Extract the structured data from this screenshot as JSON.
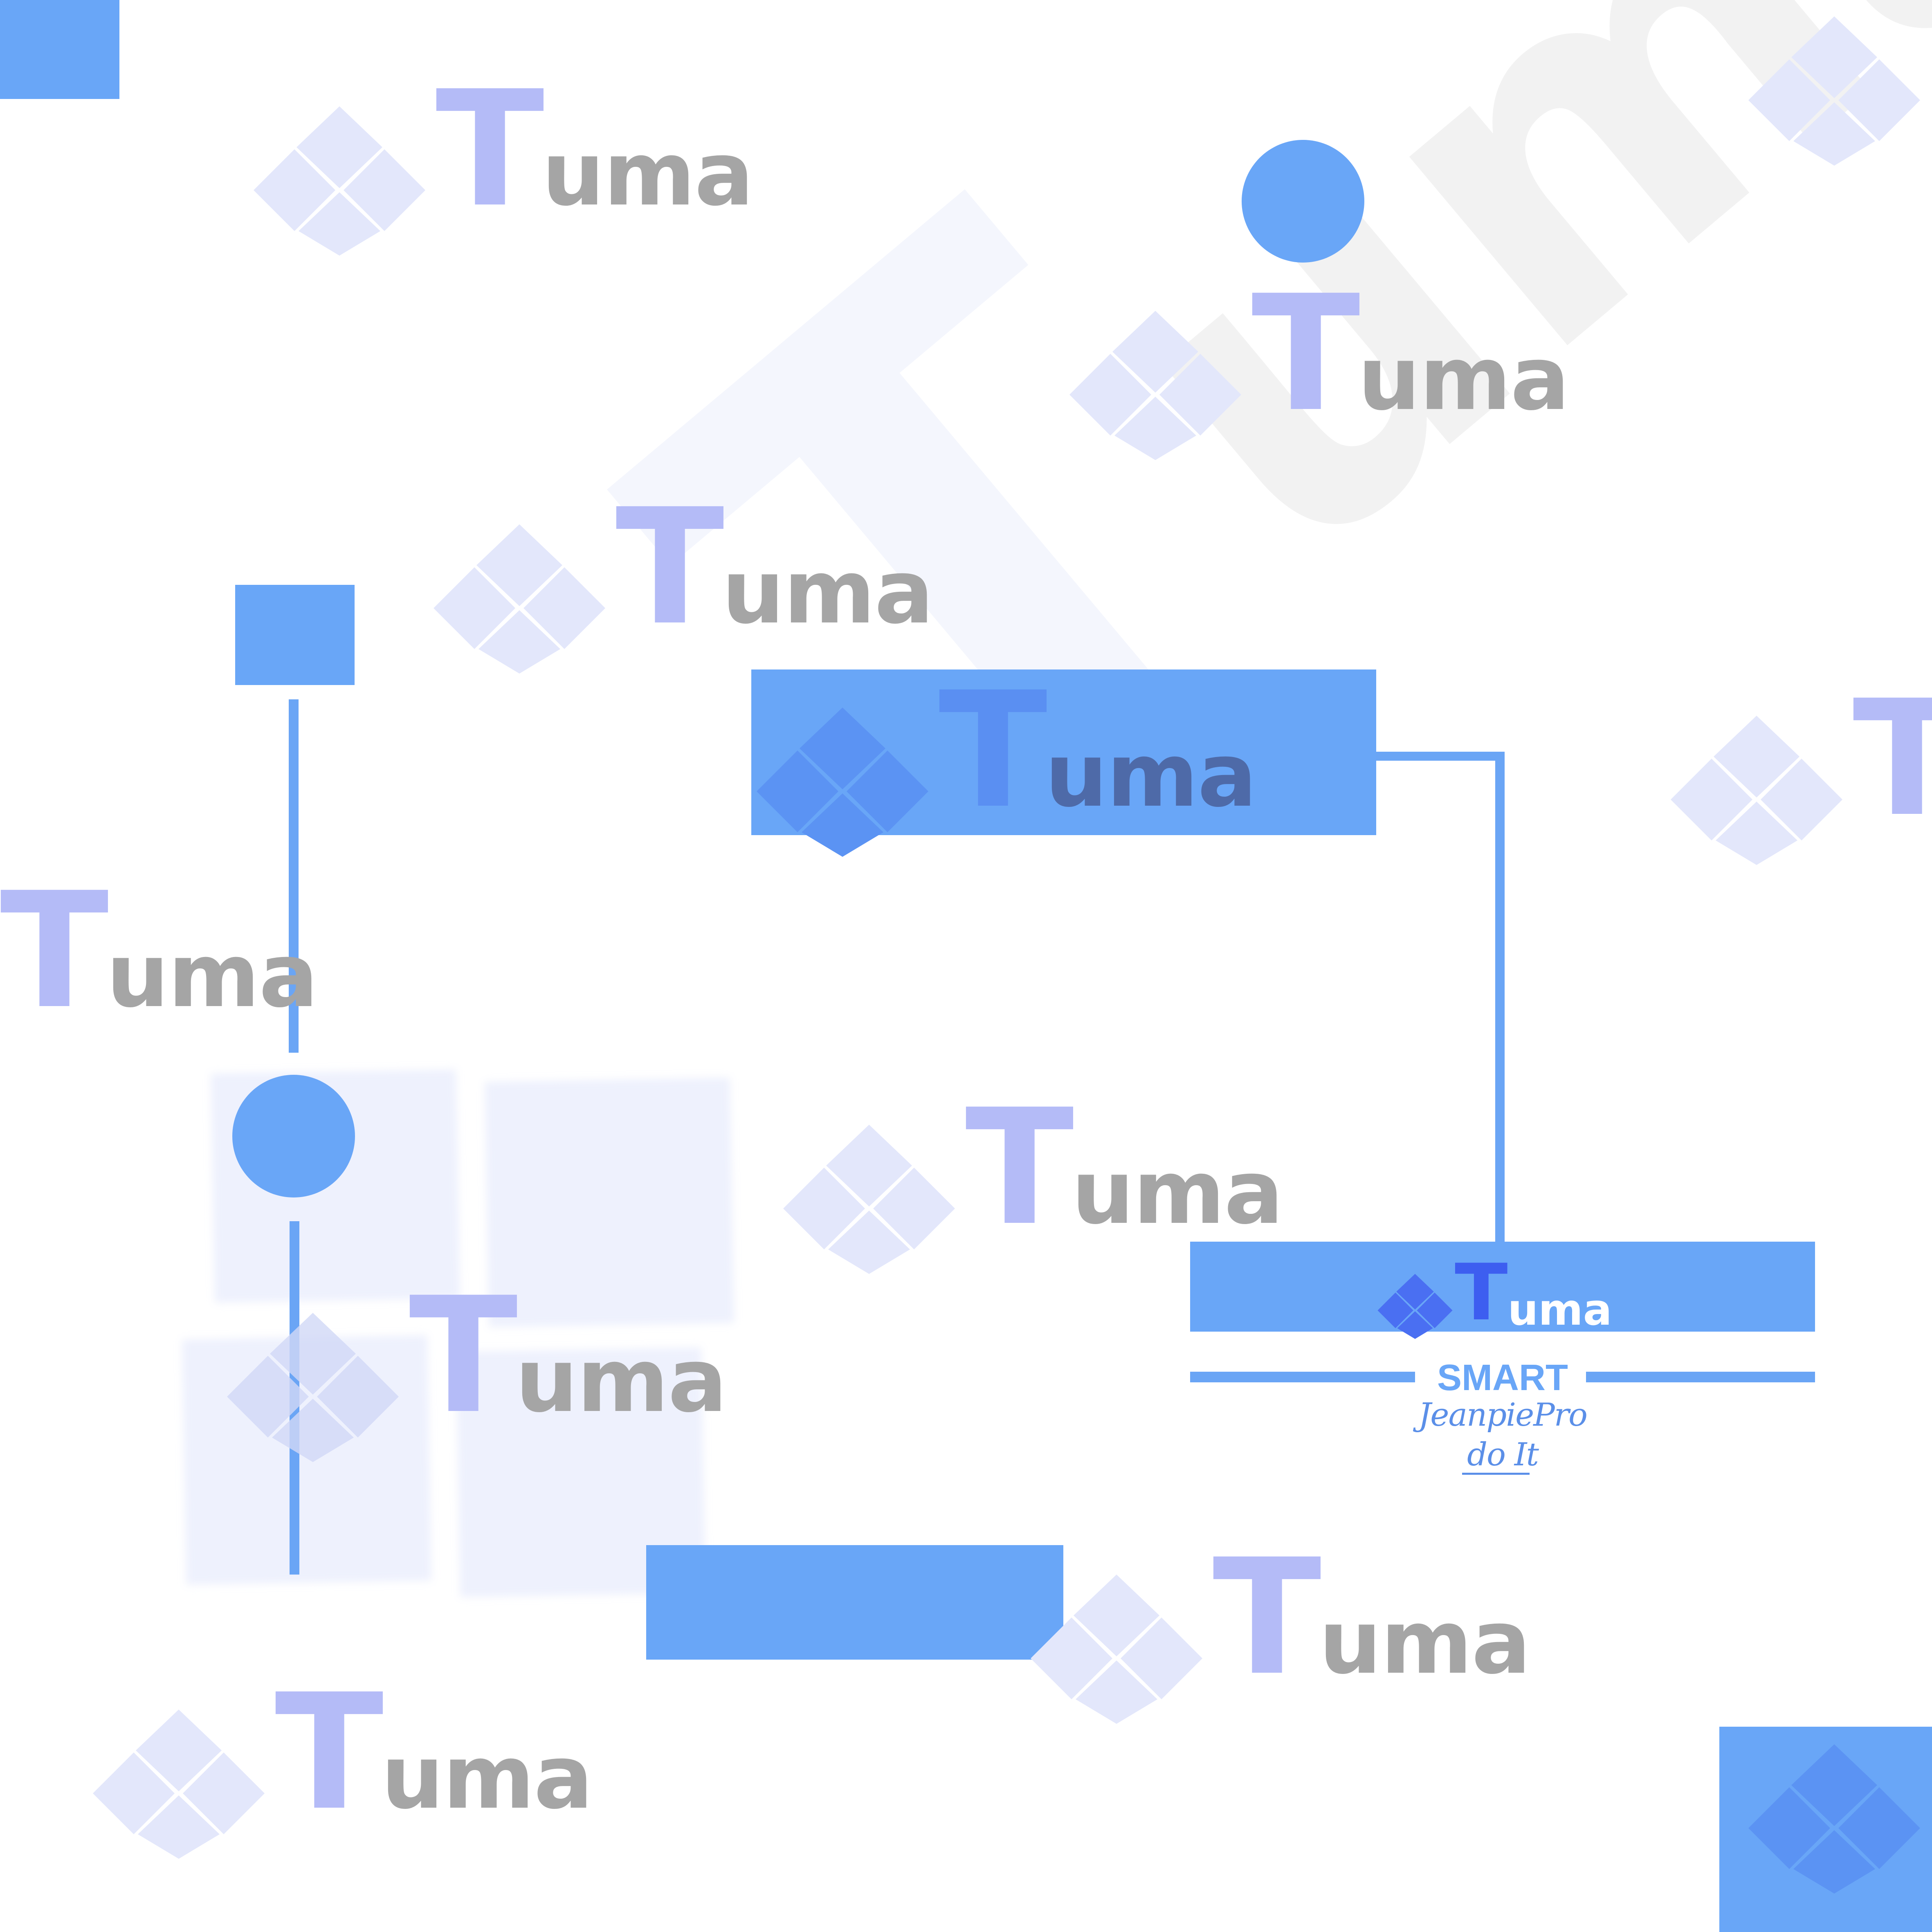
{
  "brand": {
    "t_letter": "T",
    "rest": "uma",
    "name": "Tuma"
  },
  "badge": {
    "tagline": "SMART",
    "script_line1": "JeanpiePro",
    "script_line2": "do It"
  },
  "colors": {
    "accent": "#69a6f7",
    "line": "#6aa5f5",
    "t_letter": "#b4bbf7",
    "rest": "#a5a5a5",
    "diamond": "#e3e7fb",
    "diamond_on_blue": "#5b93f3",
    "wordmark_on_blue_t": "#5a8ff2",
    "wordmark_on_blue_rest": "#4e6aa8",
    "badge_t": "#3d5ef0",
    "badge_diamond": "#4a6ff2",
    "script": "#5b8fe8",
    "bg_watermark_t": "#f4f6fd",
    "bg_watermark_rest": "#f2f2f2",
    "soft_window": "#eef1fd"
  }
}
